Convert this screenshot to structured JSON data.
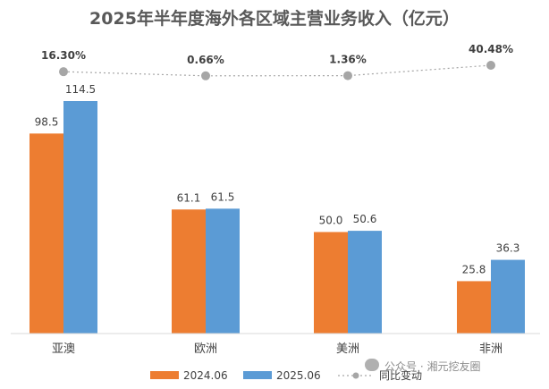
{
  "chart_data": {
    "type": "bar",
    "title": "2025年半年度海外各区域主营业务收入（亿元）",
    "categories": [
      "亚澳",
      "欧洲",
      "美洲",
      "非洲"
    ],
    "series": [
      {
        "name": "2024.06",
        "values": [
          98.5,
          61.1,
          50.0,
          25.8
        ],
        "labels": [
          "98.5",
          "61.1",
          "50.0",
          "25.8"
        ],
        "color": "#ed7d31"
      },
      {
        "name": "2025.06",
        "values": [
          114.5,
          61.5,
          50.6,
          36.3
        ],
        "labels": [
          "114.5",
          "61.5",
          "50.6",
          "36.3"
        ],
        "color": "#5b9bd5"
      }
    ],
    "yoy": {
      "name": "同比变动",
      "values": [
        16.3,
        0.66,
        1.36,
        40.48
      ],
      "labels": [
        "16.30%",
        "0.66%",
        "1.36%",
        "40.48%"
      ],
      "color": "#a6a6a6"
    },
    "ylim": [
      0,
      135
    ],
    "grid": false,
    "legend": "bottom"
  },
  "watermark": {
    "text": "公众号 · 湘元挖友圈",
    "icon": "wechat-icon"
  }
}
